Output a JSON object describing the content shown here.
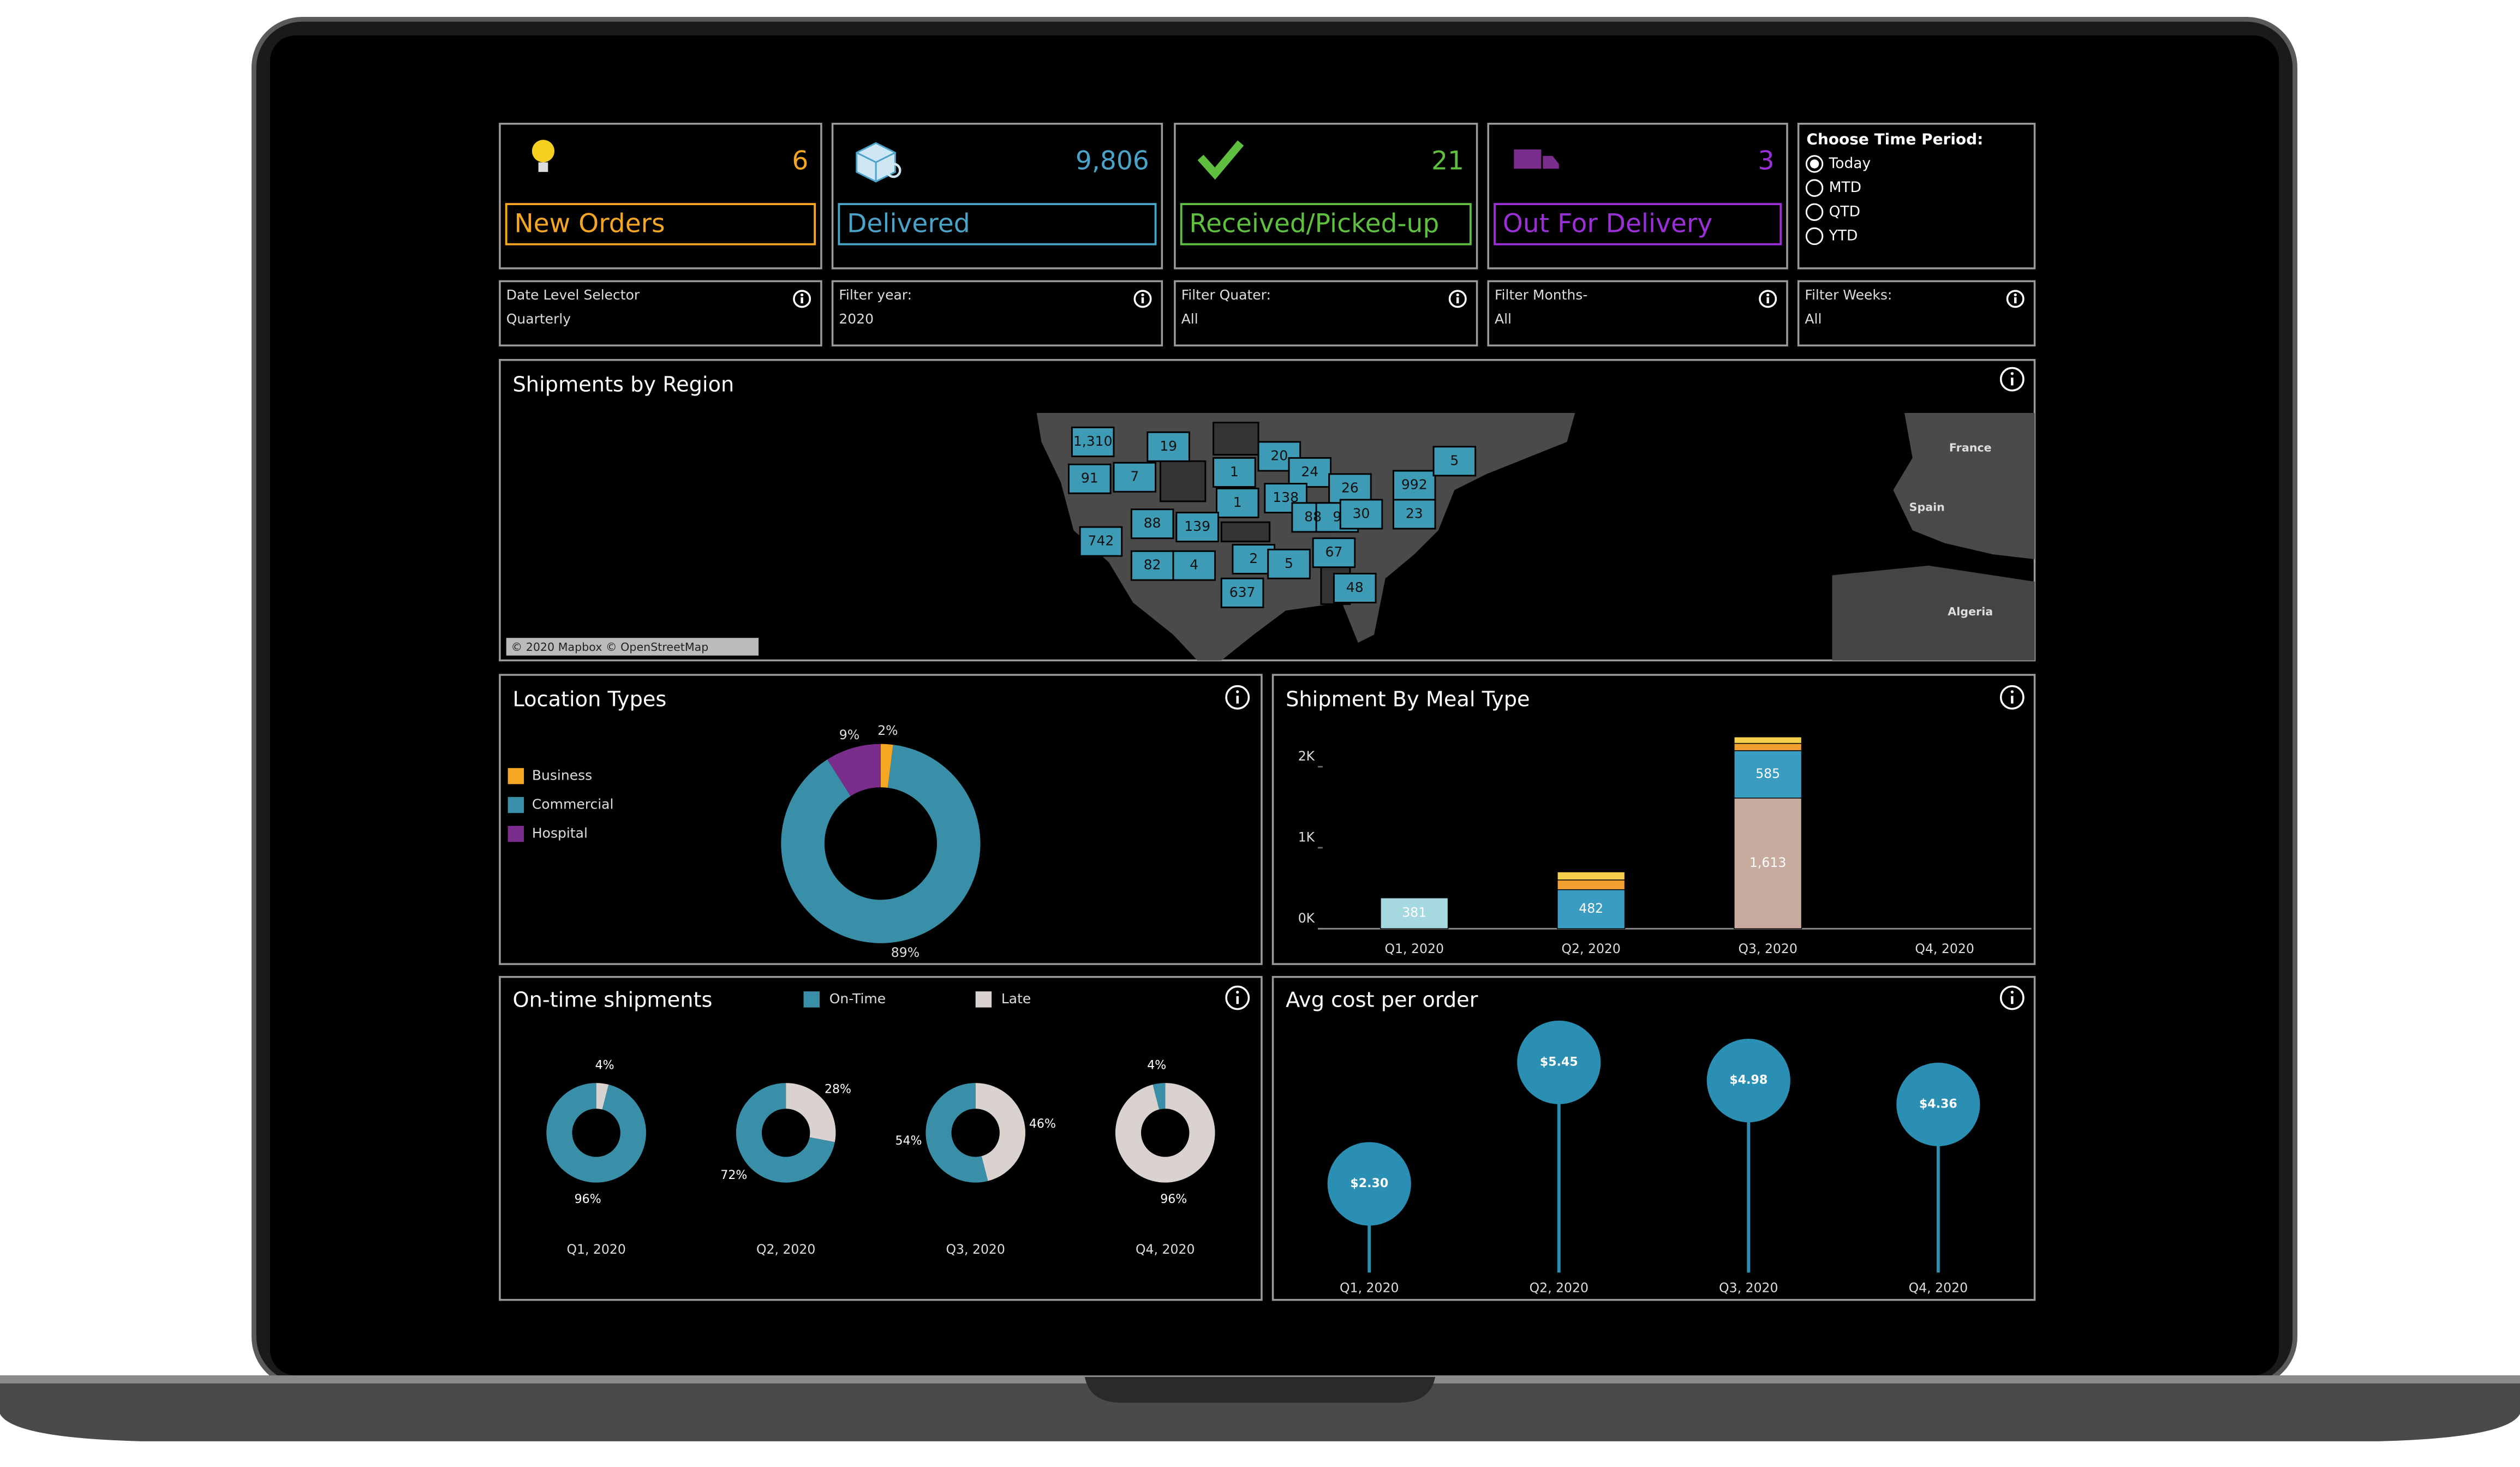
{
  "kpis": [
    {
      "value": "6",
      "label": "New Orders",
      "color": "#f5a623"
    },
    {
      "value": "9,806",
      "label": "Delivered",
      "color": "#4aa3c8"
    },
    {
      "value": "21",
      "label": "Received/Picked-up",
      "color": "#5fbf3f"
    },
    {
      "value": "3",
      "label": "Out For Delivery",
      "color": "#9b30d9"
    }
  ],
  "time_period": {
    "title": "Choose Time Period:",
    "options": [
      "Today",
      "MTD",
      "QTD",
      "YTD"
    ],
    "selected": 0
  },
  "filters": [
    {
      "label": "Date Level Selector",
      "value": "Quarterly"
    },
    {
      "label": "Filter year:",
      "value": "2020"
    },
    {
      "label": "Filter Quater:",
      "value": "All"
    },
    {
      "label": "Filter Months-",
      "value": "All"
    },
    {
      "label": "Filter Weeks:",
      "value": "All"
    }
  ],
  "map": {
    "title": "Shipments by Region",
    "labels": [
      "1,310",
      "19",
      "91",
      "7",
      "1",
      "20",
      "24",
      "26",
      "992",
      "5",
      "138",
      "1",
      "88",
      "139",
      "88",
      "9",
      "30",
      "23",
      "742",
      "82",
      "4",
      "2",
      "5",
      "67",
      "637",
      "48"
    ],
    "places": [
      "France",
      "Spain",
      "Algeria"
    ],
    "attribution": "© 2020 Mapbox © OpenStreetMap"
  },
  "location_types": {
    "type": "pie",
    "donut": true,
    "title": "Location Types",
    "categories": [
      "Business",
      "Commercial",
      "Hospital"
    ],
    "values": [
      2,
      89,
      9
    ],
    "value_labels": [
      "2%",
      "89%",
      "9%"
    ],
    "colors": [
      "#f5a623",
      "#3a8fa8",
      "#7b2d8e"
    ]
  },
  "meal_type": {
    "type": "bar",
    "stacked": true,
    "title": "Shipment By Meal Type",
    "categories": [
      "Q1, 2020",
      "Q2, 2020",
      "Q3, 2020",
      "Q4, 2020"
    ],
    "ylim": [
      0,
      2400
    ],
    "yticks": [
      {
        "value": 0,
        "label": "0K"
      },
      {
        "value": 1000,
        "label": "1K"
      },
      {
        "value": 2000,
        "label": "2K"
      }
    ],
    "series": [
      {
        "color": "#c8ab9e",
        "values": [
          null,
          null,
          1613,
          null
        ],
        "value_labels": [
          null,
          null,
          "1,613",
          null
        ]
      },
      {
        "color": "#a6d8e0",
        "values": [
          381,
          null,
          null,
          null
        ]
      },
      {
        "color": "#3a9cc0",
        "values": [
          null,
          482,
          585,
          null
        ]
      },
      {
        "color": "#f0a030",
        "values": [
          null,
          120,
          90,
          null
        ]
      },
      {
        "color": "#f5d04a",
        "values": [
          null,
          100,
          80,
          null
        ]
      }
    ]
  },
  "on_time": {
    "type": "pie",
    "donut": true,
    "title": "On-time shipments",
    "categories": [
      "Q1, 2020",
      "Q2, 2020",
      "Q3, 2020",
      "Q4, 2020"
    ],
    "series": [
      {
        "name": "On-Time",
        "color": "#3a8fa8",
        "values": [
          96,
          72,
          54,
          4
        ],
        "value_labels": [
          "96%",
          "72%",
          "54%",
          "4%"
        ]
      },
      {
        "name": "Late",
        "color": "#d9d2ce",
        "values": [
          4,
          28,
          46,
          96
        ],
        "value_labels": [
          "4%",
          "28%",
          "46%",
          "96%"
        ]
      }
    ]
  },
  "avg_cost": {
    "type": "lollipop",
    "title": "Avg cost per order",
    "categories": [
      "Q1, 2020",
      "Q2, 2020",
      "Q3, 2020",
      "Q4, 2020"
    ],
    "values": [
      2.3,
      5.45,
      4.98,
      4.36
    ],
    "value_labels": [
      "$2.30",
      "$5.45",
      "$4.98",
      "$4.36"
    ],
    "color": "#2a8fb3"
  }
}
